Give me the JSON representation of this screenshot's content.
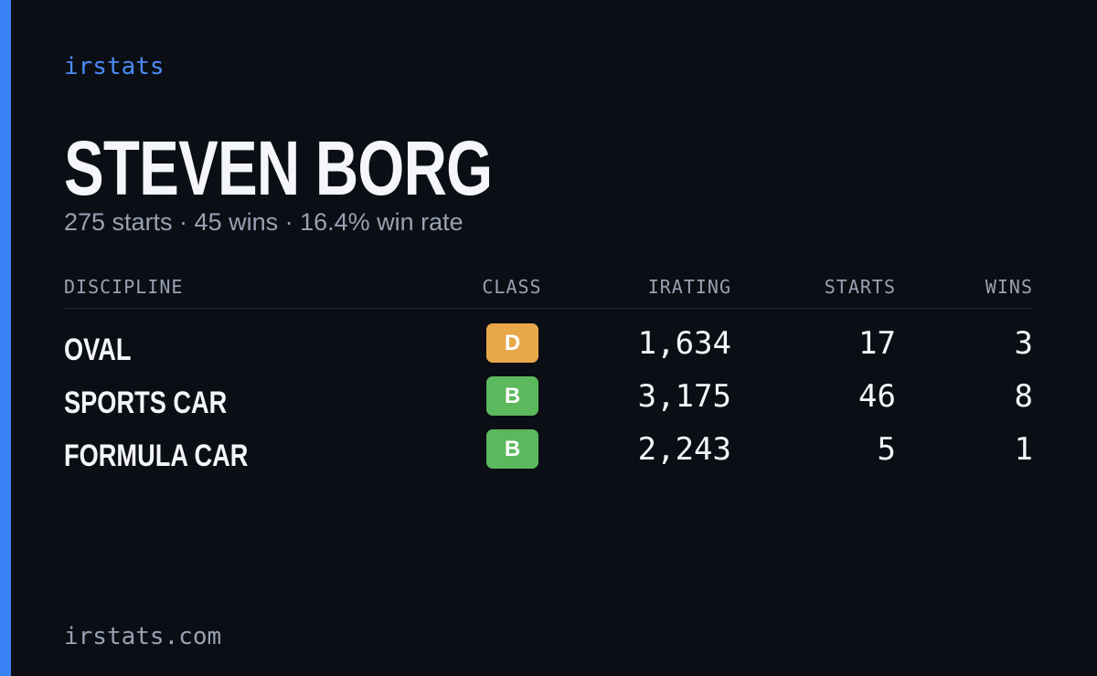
{
  "brand": "irstats",
  "profile": {
    "name": "STEVEN BORG",
    "summary": "275 starts · 45 wins · 16.4% win rate"
  },
  "table": {
    "headers": [
      "DISCIPLINE",
      "CLASS",
      "IRATING",
      "STARTS",
      "WINS"
    ],
    "rows": [
      [
        "OVAL",
        "D",
        "1,634",
        "17",
        "3"
      ],
      [
        "SPORTS CAR",
        "B",
        "3,175",
        "46",
        "8"
      ],
      [
        "FORMULA CAR",
        "B",
        "2,243",
        "5",
        "1"
      ]
    ]
  },
  "footer": "irstats.com"
}
